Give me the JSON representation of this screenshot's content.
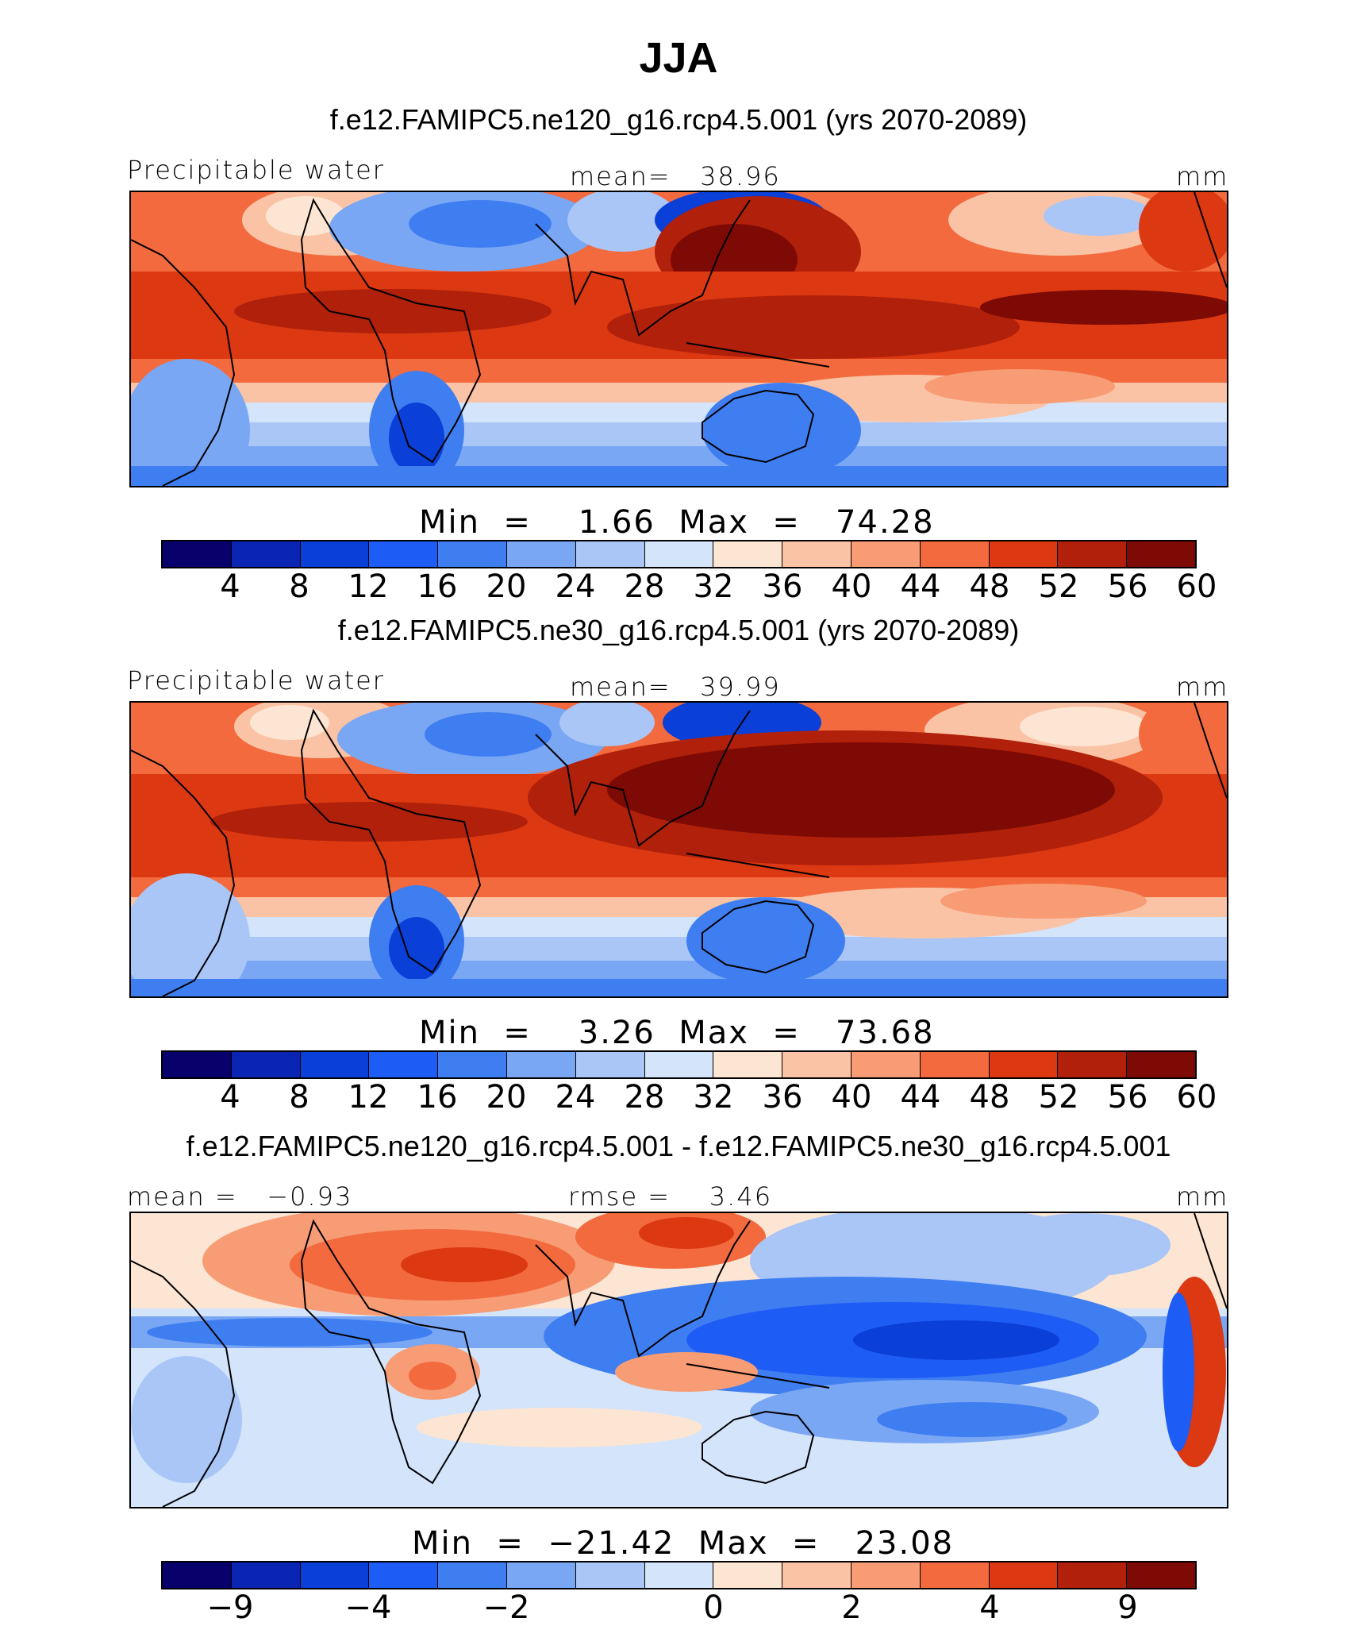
{
  "figure": {
    "title": "JJA"
  },
  "panels": [
    {
      "case_title": "f.e12.FAMIPC5.ne120_g16.rcp4.5.001 (yrs 2070-2089)",
      "left_label": "Precipitable water",
      "center_label": "mean=   38.96",
      "units": "mm",
      "minmax": "Min  =    1.66  Max  =   74.28",
      "colorbar": {
        "colors": [
          "#08006b",
          "#0a25b3",
          "#0a3fd8",
          "#1d5cf5",
          "#3f7ef0",
          "#7aa7f4",
          "#a9c6f7",
          "#d3e4fb",
          "#fde5d3",
          "#fbc3a5",
          "#f79c74",
          "#f26a3e",
          "#dc3812",
          "#b0200a",
          "#7d0a04"
        ],
        "ticks": [
          "4",
          "8",
          "12",
          "16",
          "20",
          "24",
          "28",
          "32",
          "36",
          "40",
          "44",
          "48",
          "52",
          "56",
          "60"
        ]
      }
    },
    {
      "case_title": "f.e12.FAMIPC5.ne30_g16.rcp4.5.001 (yrs 2070-2089)",
      "left_label": "Precipitable water",
      "center_label": "mean=   39.99",
      "units": "mm",
      "minmax": "Min  =    3.26  Max  =   73.68",
      "colorbar": {
        "colors": [
          "#08006b",
          "#0a25b3",
          "#0a3fd8",
          "#1d5cf5",
          "#3f7ef0",
          "#7aa7f4",
          "#a9c6f7",
          "#d3e4fb",
          "#fde5d3",
          "#fbc3a5",
          "#f79c74",
          "#f26a3e",
          "#dc3812",
          "#b0200a",
          "#7d0a04"
        ],
        "ticks": [
          "4",
          "8",
          "12",
          "16",
          "20",
          "24",
          "28",
          "32",
          "36",
          "40",
          "44",
          "48",
          "52",
          "56",
          "60"
        ]
      }
    },
    {
      "case_title": "f.e12.FAMIPC5.ne120_g16.rcp4.5.001 - f.e12.FAMIPC5.ne30_g16.rcp4.5.001",
      "left_label": "mean =   −0.93",
      "center_label": "rmse =    3.46",
      "units": "mm",
      "minmax": "Min  =  −21.42  Max  =   23.08",
      "colorbar": {
        "colors": [
          "#08006b",
          "#0a25b3",
          "#0a3fd8",
          "#1d5cf5",
          "#3f7ef0",
          "#7aa7f4",
          "#a9c6f7",
          "#d3e4fb",
          "#fde5d3",
          "#fbc3a5",
          "#f79c74",
          "#f26a3e",
          "#dc3812",
          "#b0200a",
          "#7d0a04"
        ],
        "ticks": [
          "−9",
          "−4",
          "−2",
          "0",
          "2",
          "4",
          "9"
        ]
      }
    }
  ],
  "chart_data": [
    {
      "type": "heatmap",
      "title": "f.e12.FAMIPC5.ne120_g16.rcp4.5.001 (yrs 2070-2089)",
      "variable": "Precipitable water",
      "units": "mm",
      "mean": 38.96,
      "min": 1.66,
      "max": 74.28,
      "contour_levels": [
        4,
        8,
        12,
        16,
        20,
        24,
        28,
        32,
        36,
        40,
        44,
        48,
        52,
        56,
        60
      ]
    },
    {
      "type": "heatmap",
      "title": "f.e12.FAMIPC5.ne30_g16.rcp4.5.001 (yrs 2070-2089)",
      "variable": "Precipitable water",
      "units": "mm",
      "mean": 39.99,
      "min": 3.26,
      "max": 73.68,
      "contour_levels": [
        4,
        8,
        12,
        16,
        20,
        24,
        28,
        32,
        36,
        40,
        44,
        48,
        52,
        56,
        60
      ]
    },
    {
      "type": "heatmap",
      "title": "f.e12.FAMIPC5.ne120_g16.rcp4.5.001 - f.e12.FAMIPC5.ne30_g16.rcp4.5.001",
      "units": "mm",
      "mean": -0.93,
      "rmse": 3.46,
      "min": -21.42,
      "max": 23.08,
      "colorbar_tick_labels": [
        -9,
        -4,
        -2,
        0,
        2,
        4,
        9
      ]
    }
  ]
}
